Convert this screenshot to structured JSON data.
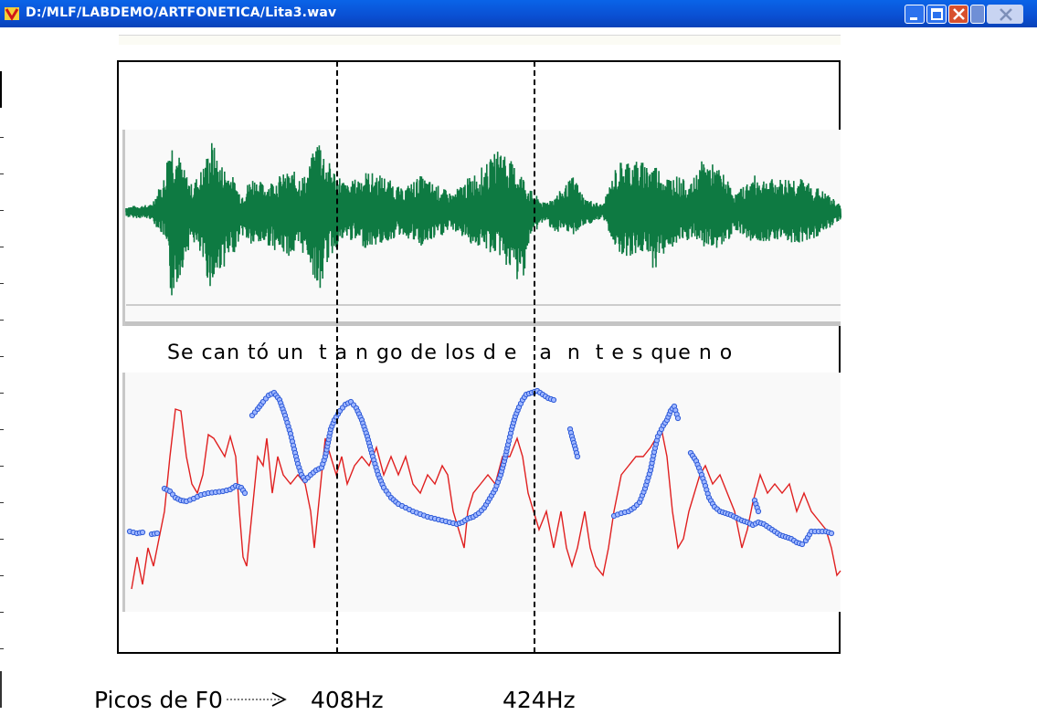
{
  "window": {
    "title": "D:/MLF/LABDEMO/ARTFONETICA/Lita3.wav",
    "icon": "app-logo-icon",
    "buttons": [
      "minimize-icon",
      "maximize-icon",
      "close-icon"
    ]
  },
  "syllable_transcription": "Se can tó un  t a n go de los d e   a  n  t e s que n o",
  "colors": {
    "titlebar": "#0a4fd2",
    "waveform": "#0e7a42",
    "f0_red": "#e02020",
    "f0_blue": "#2f5bd8",
    "frame": "#000000"
  },
  "annotation": {
    "label": "Picos de F0",
    "arrow": "dotted-arrow-icon",
    "peak1": "408Hz",
    "peak2": "424Hz"
  }
}
